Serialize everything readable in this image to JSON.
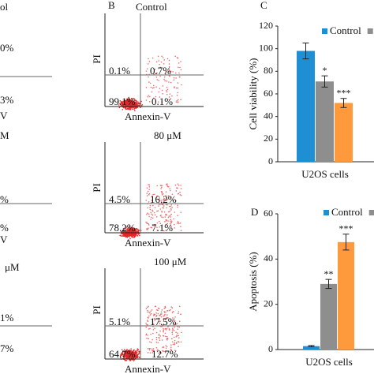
{
  "left_fragments": [
    "ol",
    "0%",
    "3%",
    "V",
    "M",
    "%",
    "%",
    "V",
    "μM",
    "1%",
    "7%"
  ],
  "flow_panels": {
    "label": "B",
    "plots": [
      {
        "title": "Control",
        "y_label": "PI",
        "x_label": "Annexin-V",
        "quadrants": [
          "0.1%",
          "0.7%",
          "99.1%",
          "0.1%"
        ]
      },
      {
        "title": "80 μM",
        "y_label": "PI",
        "x_label": "Annexin-V",
        "quadrants": [
          "4.5%",
          "16.2%",
          "78.2%",
          "7.1%"
        ]
      },
      {
        "title": "100 μM",
        "y_label": "PI",
        "x_label": "Annexin-V",
        "quadrants": [
          "5.1%",
          "17.5%",
          "64.7%",
          "12.7%"
        ]
      }
    ]
  },
  "chart_data": [
    {
      "type": "bar",
      "panel_label": "C",
      "y_label": "Cell viability (%)",
      "categories": [
        "U2OS cells"
      ],
      "series": [
        {
          "name": "Control",
          "color": "#1f8fd4",
          "values": [
            98
          ],
          "errors": [
            7
          ]
        },
        {
          "color": "#8e8e8e",
          "values": [
            71
          ],
          "errors": [
            5
          ],
          "significance": "*"
        },
        {
          "color": "#ff9a3c",
          "values": [
            52
          ],
          "errors": [
            4
          ],
          "significance": "***"
        }
      ],
      "ylim": [
        0,
        120
      ],
      "yticks": [
        0,
        20,
        40,
        60,
        80,
        100,
        120
      ]
    },
    {
      "type": "bar",
      "panel_label": "D",
      "y_label": "Apoptosis (%)",
      "categories": [
        "U2OS cells"
      ],
      "series": [
        {
          "name": "Control",
          "color": "#1f8fd4",
          "values": [
            1.5
          ],
          "errors": [
            0.3
          ]
        },
        {
          "color": "#8e8e8e",
          "values": [
            29
          ],
          "errors": [
            2
          ],
          "significance": "**"
        },
        {
          "color": "#ff9a3c",
          "values": [
            47.5
          ],
          "errors": [
            3.5
          ],
          "significance": "***"
        }
      ],
      "ylim": [
        0,
        60
      ],
      "yticks": [
        0,
        20,
        40,
        60
      ]
    }
  ]
}
